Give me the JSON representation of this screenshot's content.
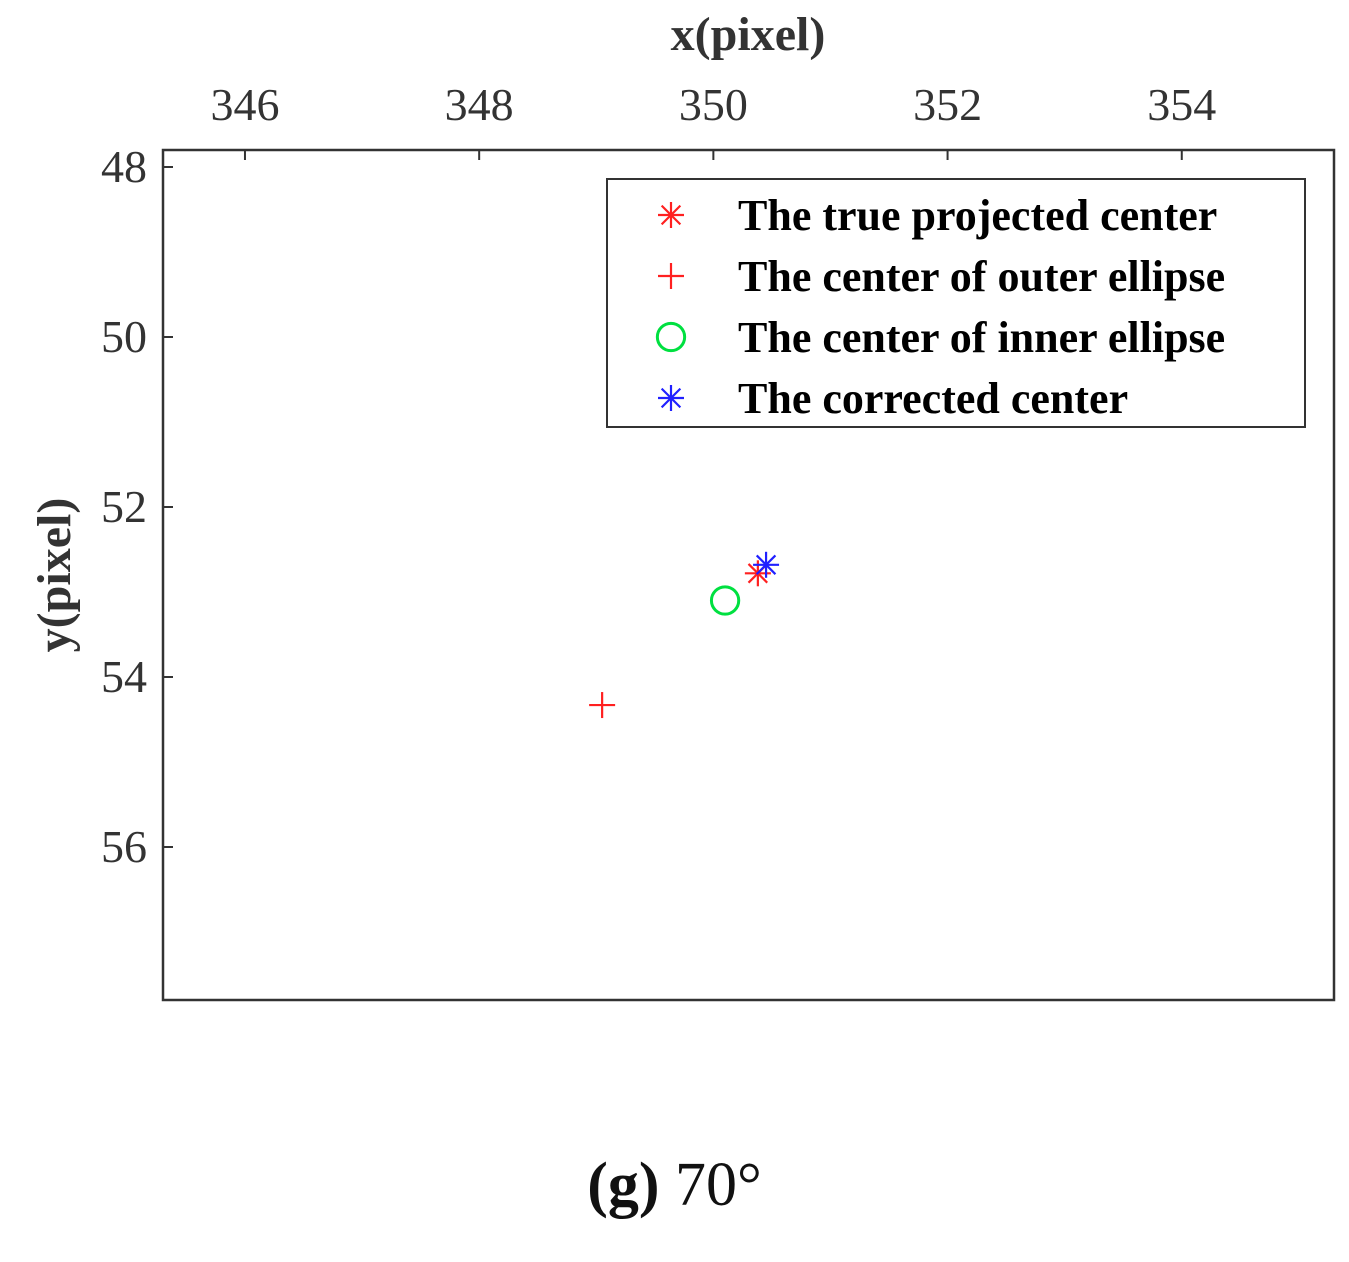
{
  "chart_data": {
    "type": "scatter",
    "xlabel": "x(pixel)",
    "ylabel": "y(pixel)",
    "xlim": [
      345.3,
      355.3
    ],
    "ylim": [
      47.8,
      57.8
    ],
    "y_reversed": true,
    "x_axis_position": "top",
    "x_ticks": [
      346,
      348,
      350,
      352,
      354
    ],
    "y_ticks": [
      48,
      50,
      52,
      54,
      56
    ],
    "grid": false,
    "legend_position": "top-right",
    "series": [
      {
        "name": "The true projected center",
        "marker": "asterisk",
        "color": "#ff2020",
        "points": [
          [
            350.38,
            52.78
          ]
        ]
      },
      {
        "name": "The center of outer ellipse",
        "marker": "plus",
        "color": "#ff2020",
        "points": [
          [
            349.05,
            54.33
          ]
        ]
      },
      {
        "name": "The center of inner ellipse",
        "marker": "circle",
        "color": "#00e040",
        "points": [
          [
            350.1,
            53.1
          ]
        ]
      },
      {
        "name": "The corrected center",
        "marker": "asterisk",
        "color": "#2020ff",
        "points": [
          [
            350.45,
            52.68
          ]
        ]
      }
    ]
  },
  "caption": {
    "letter": "(g)",
    "text": " 70°"
  }
}
